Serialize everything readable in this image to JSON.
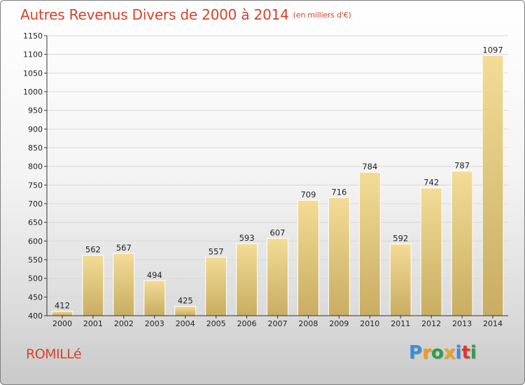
{
  "header": {
    "title": "Autres Revenus Divers de 2000 à 2014",
    "unit": "(en milliers d'€)"
  },
  "footer": {
    "commune": "ROMILLé",
    "logo_letters": [
      "P",
      "r",
      "o",
      "x",
      "i",
      "t",
      "i"
    ],
    "logo_colors": [
      "#3a8fd6",
      "#f39c1a",
      "#2e9e4a",
      "#e8a520",
      "#3a8fd6",
      "#e0372f",
      "#2e9e4a"
    ]
  },
  "colors": {
    "title": "#d5432b",
    "bar_light": "#f3dc96",
    "bar_dark": "#c8ad62",
    "grid": "#d8d8d8",
    "axis": "#333333"
  },
  "chart_data": {
    "type": "bar",
    "categories": [
      "2000",
      "2001",
      "2002",
      "2003",
      "2004",
      "2005",
      "2006",
      "2007",
      "2008",
      "2009",
      "2010",
      "2011",
      "2012",
      "2013",
      "2014"
    ],
    "values": [
      412,
      562,
      567,
      494,
      425,
      557,
      593,
      607,
      709,
      716,
      784,
      592,
      742,
      787,
      1097
    ],
    "ylim": [
      400,
      1150
    ],
    "yticks": [
      400,
      450,
      500,
      550,
      600,
      650,
      700,
      750,
      800,
      850,
      900,
      950,
      1000,
      1050,
      1100,
      1150
    ],
    "grid": true,
    "xlabel": "",
    "ylabel": ""
  }
}
